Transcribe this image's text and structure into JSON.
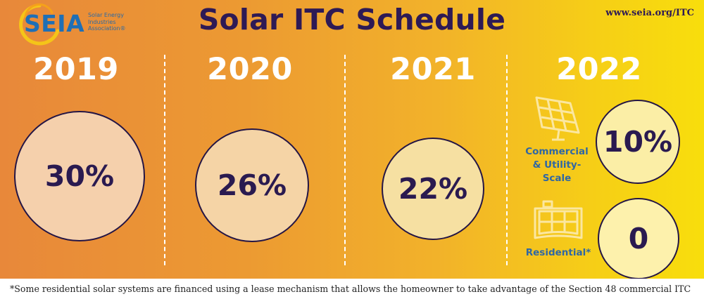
{
  "header": {
    "logo_text": "SEIA",
    "logo_sub_line1": "Solar Energy",
    "logo_sub_line2": "Industries",
    "logo_sub_line3": "Association®",
    "title": "Solar ITC Schedule",
    "url": "www.seia.org/ITC"
  },
  "years": [
    {
      "year": "2019",
      "rate": "30%"
    },
    {
      "year": "2020",
      "rate": "26%"
    },
    {
      "year": "2021",
      "rate": "22%"
    },
    {
      "year": "2022"
    }
  ],
  "y2022": {
    "commercial": {
      "label_line1": "Commercial",
      "label_line2": "& Utility-",
      "label_line3": "Scale",
      "rate": "10%",
      "icon": "solar-panel-icon"
    },
    "residential": {
      "label": "Residential*",
      "rate": "0",
      "icon": "rooftop-solar-icon"
    }
  },
  "colors": {
    "title": "#2e1a55",
    "label_blue": "#2f67a4",
    "circle_fill": [
      "#f5d0ac",
      "#f5d4a6",
      "#f6e0a2",
      "#fbeea6",
      "#fdf1ac"
    ]
  },
  "footnote": "*Some residential solar systems are financed using a lease mechanism that allows the homeowner to take advantage of the Section 48 commercial ITC"
}
